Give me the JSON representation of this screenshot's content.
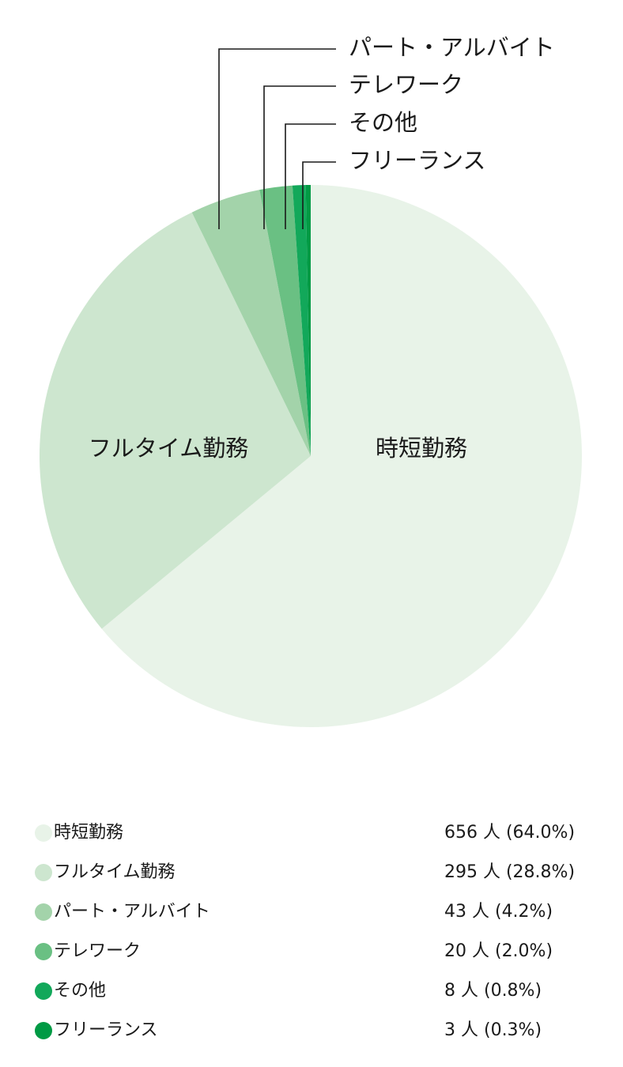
{
  "chart_data": {
    "type": "pie",
    "title": "",
    "series": [
      {
        "category": "時短勤務",
        "value": 656,
        "count_text": "656 人 (64.0%)",
        "color": "#e8f3e8"
      },
      {
        "category": "フルタイム勤務",
        "value": 295,
        "count_text": "295 人 (28.8%)",
        "color": "#cde6cf"
      },
      {
        "category": "パート・アルバイト",
        "value": 43,
        "count_text": "43 人 (4.2%)",
        "color": "#a3d3aa"
      },
      {
        "category": "テレワーク",
        "value": 20,
        "count_text": "20 人 (2.0%)",
        "color": "#6ac083"
      },
      {
        "category": "その他",
        "value": 8,
        "count_text": "8 人 (0.8%)",
        "color": "#12a85a"
      },
      {
        "category": "フリーランス",
        "value": 3,
        "count_text": "3 人 (0.3%)",
        "color": "#009a44"
      }
    ],
    "legend_position": "bottom"
  }
}
